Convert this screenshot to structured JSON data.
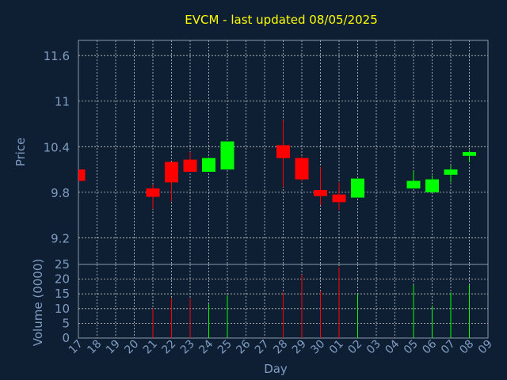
{
  "chart_data": {
    "type": "candlestick",
    "title": "EVCM - last updated 08/05/2025",
    "xlabel": "Day",
    "price_panel": {
      "ylabel": "Price",
      "yticks": [
        9.2,
        9.8,
        10.4,
        11,
        11.6
      ],
      "ylim": [
        8.85,
        11.8
      ]
    },
    "volume_panel": {
      "ylabel": "Volume (0000)",
      "yticks": [
        0,
        5,
        10,
        15,
        20,
        25
      ],
      "ylim": [
        0,
        25
      ]
    },
    "grid": true,
    "colors": {
      "up": "#00ff00",
      "down": "#ff0000",
      "background": "#0f1f33",
      "title": "#ffff00",
      "labels": "#7f9cc2"
    },
    "x_ticks": [
      "17",
      "18",
      "19",
      "20",
      "21",
      "22",
      "23",
      "24",
      "25",
      "26",
      "27",
      "28",
      "29",
      "30",
      "01",
      "02",
      "03",
      "04",
      "05",
      "06",
      "07",
      "08",
      "09"
    ],
    "candles": [
      {
        "day": "17",
        "open": 10.1,
        "high": 10.1,
        "low": 9.95,
        "close": 9.95,
        "volume": 0
      },
      {
        "day": "21",
        "open": 9.85,
        "high": 9.9,
        "low": 9.58,
        "close": 9.74,
        "volume": 10
      },
      {
        "day": "22",
        "open": 10.2,
        "high": 10.2,
        "low": 9.68,
        "close": 9.93,
        "volume": 13.5
      },
      {
        "day": "23",
        "open": 10.23,
        "high": 10.33,
        "low": 10.07,
        "close": 10.07,
        "volume": 13.5
      },
      {
        "day": "24",
        "open": 10.07,
        "high": 10.25,
        "low": 10.07,
        "close": 10.25,
        "volume": 11.5
      },
      {
        "day": "25",
        "open": 10.1,
        "high": 10.47,
        "low": 10.1,
        "close": 10.47,
        "volume": 14.5
      },
      {
        "day": "28",
        "open": 10.42,
        "high": 10.75,
        "low": 9.87,
        "close": 10.25,
        "volume": 15.5
      },
      {
        "day": "29",
        "open": 10.25,
        "high": 10.27,
        "low": 9.95,
        "close": 9.97,
        "volume": 21.5
      },
      {
        "day": "30",
        "open": 9.83,
        "high": 10.13,
        "low": 9.63,
        "close": 9.75,
        "volume": 16
      },
      {
        "day": "01",
        "open": 9.77,
        "high": 9.93,
        "low": 9.57,
        "close": 9.67,
        "volume": 24
      },
      {
        "day": "02",
        "open": 9.73,
        "high": 9.98,
        "low": 9.73,
        "close": 9.98,
        "volume": 15
      },
      {
        "day": "05",
        "open": 9.85,
        "high": 10.08,
        "low": 9.85,
        "close": 9.95,
        "volume": 18
      },
      {
        "day": "06",
        "open": 9.8,
        "high": 10.02,
        "low": 9.8,
        "close": 9.97,
        "volume": 11
      },
      {
        "day": "07",
        "open": 10.03,
        "high": 10.15,
        "low": 9.93,
        "close": 10.1,
        "volume": 15.5
      },
      {
        "day": "08",
        "open": 10.28,
        "high": 10.35,
        "low": 10.2,
        "close": 10.33,
        "volume": 18
      }
    ]
  }
}
